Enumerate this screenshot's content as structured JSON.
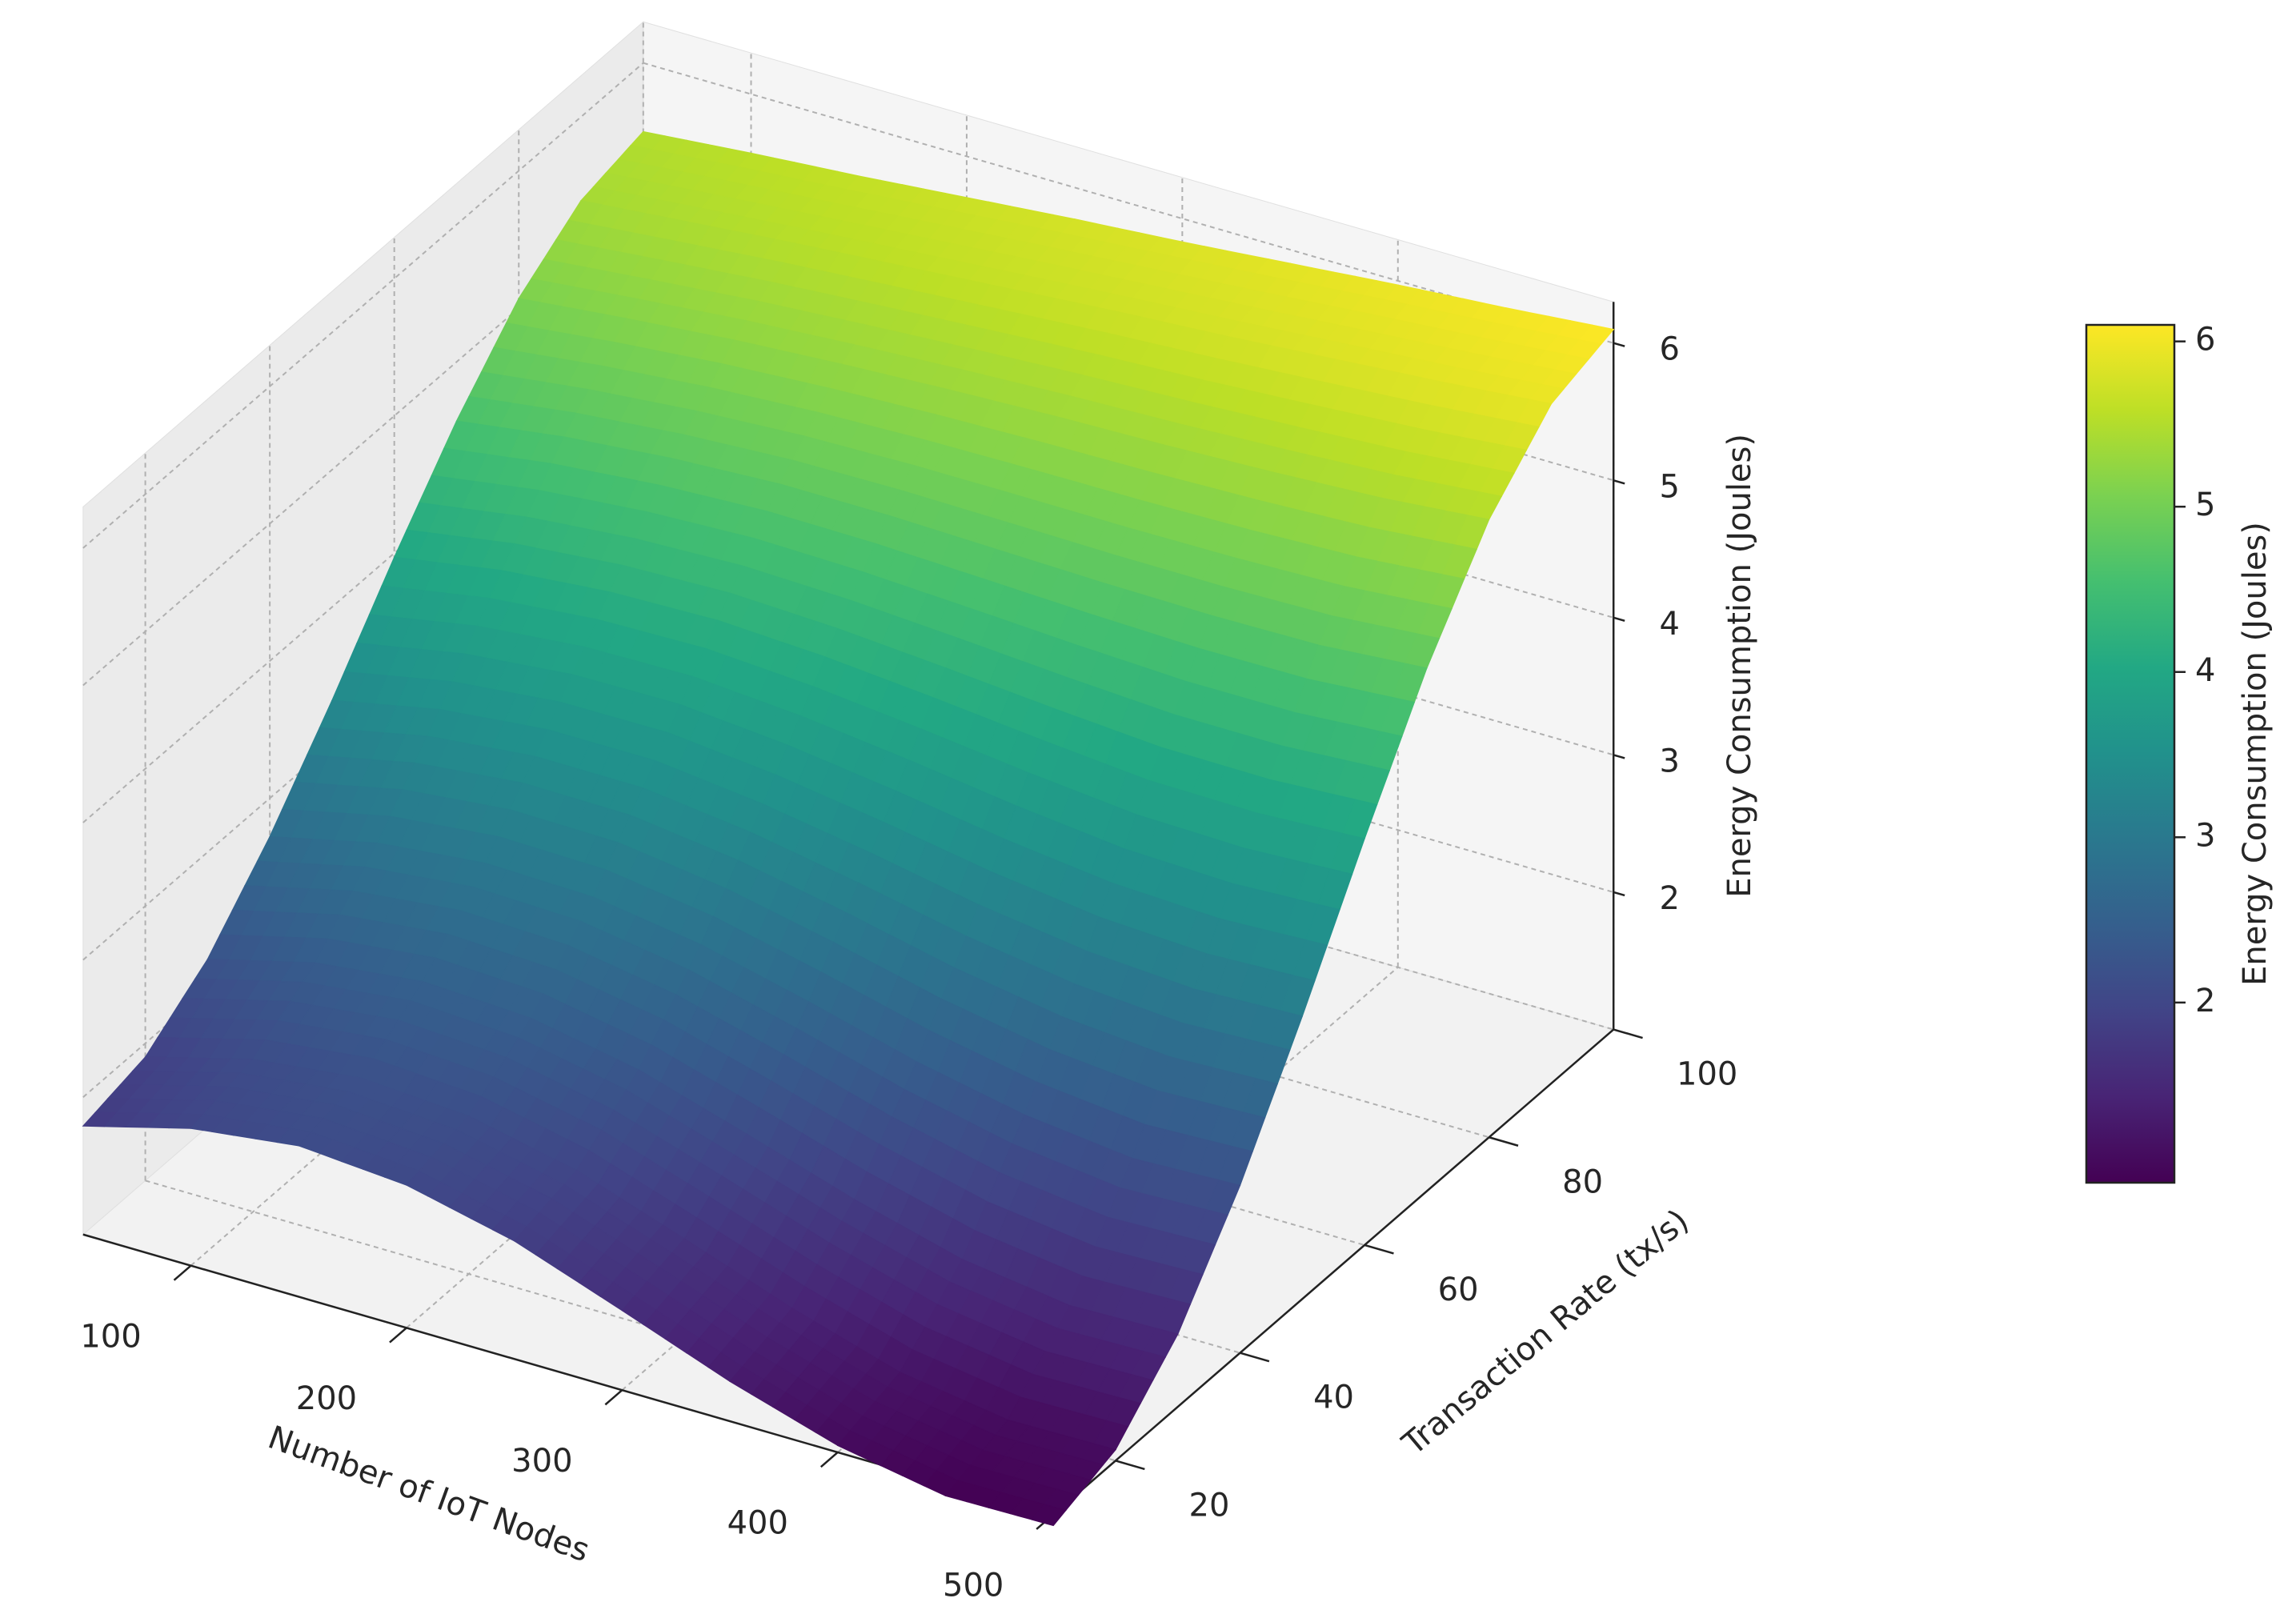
{
  "chart_data": {
    "type": "surface",
    "xlabel": "Number of IoT Nodes",
    "ylabel": "Transaction Rate (tx/s)",
    "zlabel": "Energy Consumption (Joules)",
    "colorbar_label": "Energy Consumption (Joules)",
    "colormap": "viridis",
    "grid": true,
    "x": [
      50,
      100,
      150,
      200,
      250,
      300,
      350,
      400,
      450,
      500
    ],
    "y": [
      10,
      20,
      30,
      40,
      50,
      60,
      70,
      80,
      90,
      100
    ],
    "z": [
      [
        1.79,
        2.0,
        2.1,
        2.04,
        1.86,
        1.58,
        1.29,
        1.05,
        0.91,
        0.92
      ],
      [
        1.9,
        2.11,
        2.2,
        2.15,
        1.98,
        1.71,
        1.43,
        1.19,
        1.07,
        1.08
      ],
      [
        2.22,
        2.42,
        2.51,
        2.47,
        2.32,
        2.08,
        1.83,
        1.62,
        1.51,
        1.53
      ],
      [
        2.72,
        2.9,
        2.98,
        2.96,
        2.84,
        2.65,
        2.44,
        2.28,
        2.19,
        2.22
      ],
      [
        3.32,
        3.48,
        3.56,
        3.56,
        3.47,
        3.34,
        3.19,
        3.08,
        3.03,
        3.06
      ],
      [
        3.97,
        4.1,
        4.17,
        4.19,
        4.15,
        4.08,
        4.0,
        3.93,
        3.92,
        3.96
      ],
      [
        4.57,
        4.68,
        4.75,
        4.79,
        4.79,
        4.77,
        4.75,
        4.74,
        4.75,
        4.81
      ],
      [
        5.07,
        5.15,
        5.22,
        5.27,
        5.31,
        5.34,
        5.36,
        5.39,
        5.43,
        5.5
      ],
      [
        5.39,
        5.46,
        5.53,
        5.59,
        5.65,
        5.71,
        5.76,
        5.82,
        5.88,
        5.95
      ],
      [
        5.5,
        5.57,
        5.63,
        5.7,
        5.77,
        5.83,
        5.9,
        5.97,
        6.03,
        6.1
      ]
    ],
    "xlim": [
      50,
      500
    ],
    "xticks": [
      100,
      200,
      300,
      400,
      500
    ],
    "ylim": [
      10,
      100
    ],
    "yticks": [
      20,
      40,
      60,
      80,
      100
    ],
    "zlim": [
      1,
      6.3
    ],
    "zticks": [
      2,
      3,
      4,
      5,
      6
    ],
    "clim": [
      0.91,
      6.1
    ],
    "colorbar_ticks": [
      2,
      3,
      4,
      5,
      6
    ]
  }
}
